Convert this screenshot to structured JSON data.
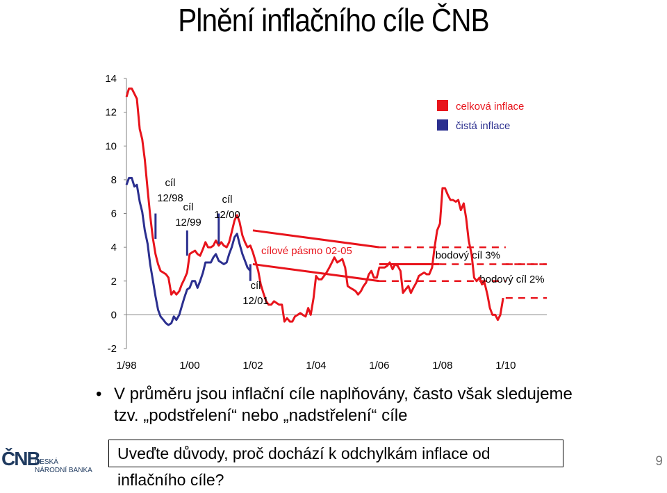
{
  "slide": {
    "title": "Plnění inflačního cíle ČNB",
    "bullet": "V průměru jsou inflační cíle naplňovány, často však sledujeme tzv. „podstřelení“ nebo „nadstřelení“ cíle",
    "question": "Uveďte důvody, proč dochází k odchylkám inflace od inflačního cíle?",
    "page_number": "9",
    "logo": {
      "mark": "ČNB",
      "line1": "ČESKÁ",
      "line2": "NÁRODNÍ BANKA"
    }
  },
  "chart_data": {
    "type": "line",
    "ylim": [
      -2,
      14
    ],
    "yticks": [
      "14",
      "12",
      "10",
      "8",
      "6",
      "4",
      "2",
      "0",
      "-2"
    ],
    "xticks": [
      {
        "x": 1998.0,
        "label": "1/98"
      },
      {
        "x": 2000.0,
        "label": "1/00"
      },
      {
        "x": 2002.0,
        "label": "1/02"
      },
      {
        "x": 2004.0,
        "label": "1/04"
      },
      {
        "x": 2006.0,
        "label": "1/06"
      },
      {
        "x": 2008.0,
        "label": "1/08"
      },
      {
        "x": 2010.0,
        "label": "1/10"
      }
    ],
    "xlim": [
      1998.0,
      2011.3
    ],
    "colors": {
      "headline": "#e8141c",
      "core": "#2b2f8f",
      "targets": "#e8141c",
      "target_markers": "#2b2f8f"
    },
    "series": [
      {
        "name": "celková inflace",
        "color": "#e8141c",
        "points": [
          [
            1998.0,
            12.9
          ],
          [
            1998.08,
            13.4
          ],
          [
            1998.17,
            13.4
          ],
          [
            1998.25,
            13.1
          ],
          [
            1998.33,
            12.8
          ],
          [
            1998.42,
            11.0
          ],
          [
            1998.5,
            10.4
          ],
          [
            1998.58,
            9.2
          ],
          [
            1998.67,
            7.4
          ],
          [
            1998.75,
            5.9
          ],
          [
            1998.83,
            4.6
          ],
          [
            1998.92,
            3.6
          ],
          [
            1999.0,
            3.0
          ],
          [
            1999.08,
            2.6
          ],
          [
            1999.17,
            2.5
          ],
          [
            1999.25,
            2.4
          ],
          [
            1999.33,
            2.2
          ],
          [
            1999.42,
            1.2
          ],
          [
            1999.5,
            1.4
          ],
          [
            1999.58,
            1.2
          ],
          [
            1999.67,
            1.4
          ],
          [
            1999.75,
            1.8
          ],
          [
            1999.83,
            2.1
          ],
          [
            1999.92,
            2.5
          ],
          [
            2000.0,
            3.6
          ],
          [
            2000.08,
            3.7
          ],
          [
            2000.17,
            3.8
          ],
          [
            2000.25,
            3.6
          ],
          [
            2000.33,
            3.5
          ],
          [
            2000.42,
            3.9
          ],
          [
            2000.5,
            4.3
          ],
          [
            2000.58,
            4.0
          ],
          [
            2000.67,
            4.0
          ],
          [
            2000.75,
            4.1
          ],
          [
            2000.83,
            4.4
          ],
          [
            2000.92,
            4.1
          ],
          [
            2001.0,
            4.3
          ],
          [
            2001.08,
            4.1
          ],
          [
            2001.17,
            4.0
          ],
          [
            2001.25,
            4.3
          ],
          [
            2001.33,
            4.9
          ],
          [
            2001.42,
            5.6
          ],
          [
            2001.5,
            5.9
          ],
          [
            2001.58,
            5.5
          ],
          [
            2001.67,
            4.7
          ],
          [
            2001.75,
            4.3
          ],
          [
            2001.83,
            4.0
          ],
          [
            2001.92,
            4.1
          ],
          [
            2002.0,
            3.7
          ],
          [
            2002.08,
            3.2
          ],
          [
            2002.17,
            2.6
          ],
          [
            2002.25,
            1.8
          ],
          [
            2002.33,
            1.3
          ],
          [
            2002.42,
            0.8
          ],
          [
            2002.5,
            0.6
          ],
          [
            2002.58,
            0.6
          ],
          [
            2002.67,
            0.8
          ],
          [
            2002.75,
            0.7
          ],
          [
            2002.83,
            0.6
          ],
          [
            2002.92,
            0.6
          ],
          [
            2003.0,
            -0.4
          ],
          [
            2003.08,
            -0.2
          ],
          [
            2003.17,
            -0.4
          ],
          [
            2003.25,
            -0.4
          ],
          [
            2003.33,
            -0.1
          ],
          [
            2003.42,
            0.0
          ],
          [
            2003.5,
            0.1
          ],
          [
            2003.58,
            0.0
          ],
          [
            2003.67,
            -0.1
          ],
          [
            2003.75,
            0.4
          ],
          [
            2003.83,
            0.0
          ],
          [
            2003.92,
            1.0
          ],
          [
            2004.0,
            2.3
          ],
          [
            2004.08,
            2.1
          ],
          [
            2004.17,
            2.1
          ],
          [
            2004.25,
            2.3
          ],
          [
            2004.33,
            2.5
          ],
          [
            2004.42,
            2.8
          ],
          [
            2004.5,
            3.1
          ],
          [
            2004.58,
            3.4
          ],
          [
            2004.67,
            3.1
          ],
          [
            2004.75,
            3.2
          ],
          [
            2004.83,
            3.3
          ],
          [
            2004.92,
            2.8
          ],
          [
            2005.0,
            1.7
          ],
          [
            2005.08,
            1.6
          ],
          [
            2005.17,
            1.5
          ],
          [
            2005.25,
            1.4
          ],
          [
            2005.33,
            1.2
          ],
          [
            2005.42,
            1.4
          ],
          [
            2005.5,
            1.7
          ],
          [
            2005.58,
            1.9
          ],
          [
            2005.67,
            2.4
          ],
          [
            2005.75,
            2.6
          ],
          [
            2005.83,
            2.2
          ],
          [
            2005.92,
            2.2
          ],
          [
            2006.0,
            2.8
          ],
          [
            2006.08,
            2.8
          ],
          [
            2006.17,
            2.8
          ],
          [
            2006.25,
            2.9
          ],
          [
            2006.33,
            3.1
          ],
          [
            2006.42,
            2.7
          ],
          [
            2006.5,
            3.0
          ],
          [
            2006.58,
            2.9
          ],
          [
            2006.67,
            2.6
          ],
          [
            2006.75,
            1.3
          ],
          [
            2006.83,
            1.5
          ],
          [
            2006.92,
            1.7
          ],
          [
            2007.0,
            1.3
          ],
          [
            2007.08,
            1.6
          ],
          [
            2007.17,
            1.9
          ],
          [
            2007.25,
            2.3
          ],
          [
            2007.33,
            2.4
          ],
          [
            2007.42,
            2.5
          ],
          [
            2007.5,
            2.4
          ],
          [
            2007.58,
            2.4
          ],
          [
            2007.67,
            2.8
          ],
          [
            2007.75,
            4.0
          ],
          [
            2007.83,
            5.0
          ],
          [
            2007.92,
            5.4
          ],
          [
            2008.0,
            7.5
          ],
          [
            2008.08,
            7.5
          ],
          [
            2008.17,
            7.1
          ],
          [
            2008.25,
            6.8
          ],
          [
            2008.33,
            6.8
          ],
          [
            2008.42,
            6.7
          ],
          [
            2008.5,
            6.8
          ],
          [
            2008.58,
            6.2
          ],
          [
            2008.67,
            6.6
          ],
          [
            2008.75,
            5.7
          ],
          [
            2008.83,
            4.4
          ],
          [
            2008.92,
            3.6
          ],
          [
            2009.0,
            2.2
          ],
          [
            2009.08,
            2.0
          ],
          [
            2009.17,
            2.2
          ],
          [
            2009.25,
            1.8
          ],
          [
            2009.33,
            1.9
          ],
          [
            2009.42,
            1.2
          ],
          [
            2009.5,
            0.4
          ],
          [
            2009.58,
            0.0
          ],
          [
            2009.67,
            0.0
          ],
          [
            2009.75,
            -0.3
          ],
          [
            2009.83,
            0.0
          ],
          [
            2009.92,
            1.0
          ]
        ]
      },
      {
        "name": "čistá inflace",
        "color": "#2b2f8f",
        "points": [
          [
            1998.0,
            7.7
          ],
          [
            1998.08,
            8.1
          ],
          [
            1998.17,
            8.1
          ],
          [
            1998.25,
            7.6
          ],
          [
            1998.33,
            7.7
          ],
          [
            1998.42,
            6.7
          ],
          [
            1998.5,
            6.1
          ],
          [
            1998.58,
            5.0
          ],
          [
            1998.67,
            4.2
          ],
          [
            1998.75,
            3.0
          ],
          [
            1998.83,
            2.1
          ],
          [
            1998.92,
            1.1
          ],
          [
            1999.0,
            0.3
          ],
          [
            1999.08,
            -0.1
          ],
          [
            1999.17,
            -0.3
          ],
          [
            1999.25,
            -0.5
          ],
          [
            1999.33,
            -0.6
          ],
          [
            1999.42,
            -0.5
          ],
          [
            1999.5,
            -0.1
          ],
          [
            1999.58,
            -0.3
          ],
          [
            1999.67,
            0.0
          ],
          [
            1999.75,
            0.5
          ],
          [
            1999.83,
            1.0
          ],
          [
            1999.92,
            1.5
          ],
          [
            2000.0,
            1.6
          ],
          [
            2000.08,
            2.0
          ],
          [
            2000.17,
            2.0
          ],
          [
            2000.25,
            1.6
          ],
          [
            2000.33,
            2.0
          ],
          [
            2000.42,
            2.5
          ],
          [
            2000.5,
            3.1
          ],
          [
            2000.58,
            3.1
          ],
          [
            2000.67,
            3.1
          ],
          [
            2000.75,
            3.4
          ],
          [
            2000.83,
            3.6
          ],
          [
            2000.92,
            3.2
          ],
          [
            2001.0,
            3.1
          ],
          [
            2001.08,
            3.0
          ],
          [
            2001.17,
            3.1
          ],
          [
            2001.25,
            3.6
          ],
          [
            2001.33,
            4.0
          ],
          [
            2001.42,
            4.6
          ],
          [
            2001.5,
            4.8
          ],
          [
            2001.58,
            4.2
          ],
          [
            2001.67,
            3.6
          ],
          [
            2001.75,
            3.2
          ],
          [
            2001.83,
            2.8
          ],
          [
            2001.92,
            2.6
          ]
        ]
      }
    ],
    "legend": [
      {
        "label": "celková inflace",
        "color": "#e8141c"
      },
      {
        "label": "čistá inflace",
        "color": "#2b2f8f"
      }
    ],
    "target_band": {
      "label": "cílové pásmo 02-05",
      "x": [
        2002.0,
        2006.0
      ],
      "upper": [
        5.0,
        4.0
      ],
      "lower": [
        3.0,
        2.0
      ]
    },
    "point_targets": [
      {
        "label": "bodový cíl 3%",
        "value": 3.0,
        "solid_x": [
          2006.0,
          2007.9
        ],
        "dashed_x": [
          2007.9,
          2011.3
        ],
        "dashed_upper": 4.0,
        "dashed_lower": 2.0,
        "dash_end": 2010.0
      },
      {
        "label": "bodový cíl 2%",
        "value": 2.0,
        "dashed_x": [
          2010.0,
          2011.3
        ],
        "dashed_upper": 3.0,
        "dashed_lower": 1.0
      }
    ],
    "target_markers": [
      {
        "x": 1998.92,
        "top": 6.0,
        "bottom": 4.5,
        "lines": [
          "cíl",
          "12/98"
        ]
      },
      {
        "x": 1999.92,
        "top": 5.0,
        "bottom": 3.5,
        "lines": [
          "cíl",
          "12/99"
        ]
      },
      {
        "x": 2000.92,
        "top": 6.0,
        "bottom": 4.2,
        "lines": [
          "cíl",
          "12/00"
        ]
      },
      {
        "x": 2001.92,
        "top": 3.0,
        "bottom": 2.0,
        "lines": [
          "cíl",
          "12/01"
        ]
      }
    ]
  }
}
